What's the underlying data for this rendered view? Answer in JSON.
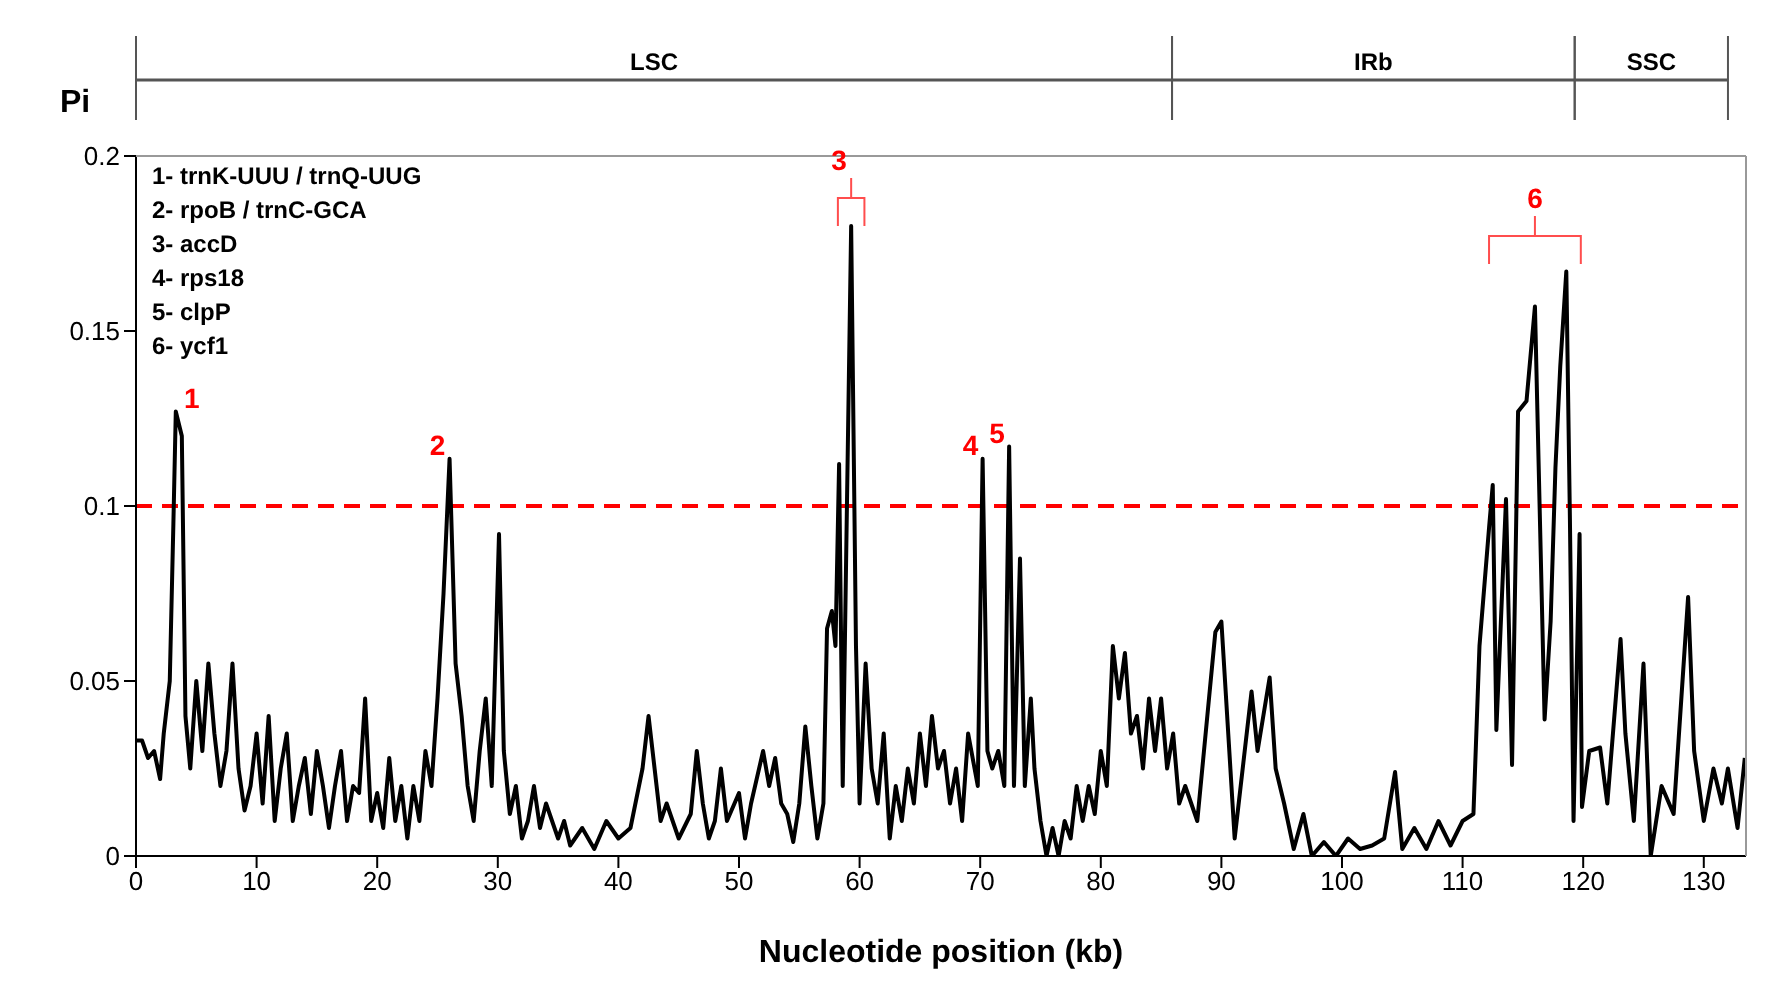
{
  "chart_data": {
    "type": "line",
    "xlabel": "Nucleotide position (kb)",
    "ylabel": "Pi",
    "xlim": [
      0,
      133.5
    ],
    "xticks": [
      0,
      10,
      20,
      30,
      40,
      50,
      60,
      70,
      80,
      90,
      100,
      110,
      120,
      130
    ],
    "ylim": [
      0,
      0.2
    ],
    "yticks": [
      0,
      0.05,
      0.1,
      0.15,
      0.2
    ],
    "grid": false,
    "ref_lines": [
      {
        "axis": "y",
        "value": 0.1,
        "color": "#ff0000",
        "line_style": "dashed"
      }
    ],
    "annotations": [
      "1- trnK-UUU / trnQ-UUG",
      "2- rpoB / trnC-GCA",
      "3- accD",
      "4- rps18",
      "5- clpP",
      "6- ycf1",
      "LSC",
      "IRb",
      "SSC",
      "6",
      {
        "text": "1",
        "x": 3.3,
        "y": 0.127
      },
      {
        "text": "2",
        "x": 26,
        "y": 0.1135
      },
      {
        "text": "3",
        "x": 59.3,
        "y": 0.18
      },
      {
        "text": "4",
        "x": 70.2,
        "y": 0.1135
      },
      {
        "text": "5",
        "x": 72.4,
        "y": 0.117
      }
    ],
    "series": [
      {
        "color": "#000000",
        "x": [
          0,
          0.5,
          1,
          1.5,
          2,
          2.3,
          2.8,
          3.1,
          3.3,
          3.8,
          4.1,
          4.5,
          5,
          5.5,
          6,
          6.5,
          7,
          7.5,
          8,
          8.5,
          9,
          9.5,
          10,
          10.5,
          11,
          11.5,
          12,
          12.5,
          13,
          13.5,
          14,
          14.5,
          15,
          15.5,
          16,
          16.5,
          17,
          17.5,
          18,
          18.5,
          19,
          19.5,
          20,
          20.5,
          21,
          21.5,
          22,
          22.5,
          23,
          23.5,
          24,
          24.5,
          25,
          25.5,
          26,
          26.5,
          27,
          27.5,
          28,
          28.5,
          29,
          29.5,
          30.1,
          30.5,
          31,
          31.5,
          32,
          32.5,
          33,
          33.5,
          34,
          35,
          35.5,
          36,
          37,
          38,
          39,
          40,
          41,
          42,
          42.5,
          43,
          43.5,
          44,
          45,
          46,
          46.5,
          47,
          47.5,
          48,
          48.5,
          49,
          50,
          50.5,
          51,
          52,
          52.5,
          53,
          53.5,
          54,
          54.5,
          55,
          55.5,
          56,
          56.5,
          57,
          57.3,
          57.7,
          58,
          58.3,
          58.6,
          59.3,
          59.7,
          60,
          60.5,
          61,
          61.5,
          62,
          62.5,
          63,
          63.5,
          64,
          64.5,
          65,
          65.5,
          66,
          66.5,
          67,
          67.5,
          68,
          68.5,
          69,
          69.8,
          70.2,
          70.6,
          71,
          71.5,
          72,
          72.4,
          72.8,
          73.3,
          73.7,
          74.2,
          74.5,
          75,
          75.5,
          76,
          76.5,
          77,
          77.5,
          78,
          78.5,
          79,
          79.5,
          80,
          80.5,
          81,
          81.5,
          82,
          82.5,
          83,
          83.5,
          84,
          84.5,
          85,
          85.5,
          86,
          86.5,
          87,
          88,
          89.5,
          90,
          91.1,
          92.5,
          93,
          94,
          94.5,
          95.2,
          96,
          96.8,
          97.5,
          98.5,
          99.5,
          100.5,
          101.5,
          102.5,
          103.5,
          104.4,
          105,
          106,
          107,
          108,
          109,
          110,
          110.9,
          111.4,
          112.2,
          112.5,
          112.8,
          113.6,
          114.1,
          114.6,
          115.3,
          116,
          116.8,
          117.3,
          117.7,
          118.1,
          118.6,
          118.9,
          119.2,
          119.7,
          119.9,
          120.5,
          121.4,
          122,
          123.1,
          123.5,
          124.2,
          125,
          125.6,
          126.5,
          127.5,
          128.7,
          129.2,
          130,
          130.8,
          131.5,
          132,
          132.8,
          133.4
        ],
        "values": [
          0.033,
          0.033,
          0.028,
          0.03,
          0.022,
          0.035,
          0.05,
          0.095,
          0.127,
          0.12,
          0.04,
          0.025,
          0.05,
          0.03,
          0.055,
          0.035,
          0.02,
          0.03,
          0.055,
          0.025,
          0.013,
          0.02,
          0.035,
          0.015,
          0.04,
          0.01,
          0.025,
          0.035,
          0.01,
          0.02,
          0.028,
          0.012,
          0.03,
          0.02,
          0.008,
          0.02,
          0.03,
          0.01,
          0.02,
          0.018,
          0.045,
          0.01,
          0.018,
          0.008,
          0.028,
          0.01,
          0.02,
          0.005,
          0.02,
          0.01,
          0.03,
          0.02,
          0.045,
          0.075,
          0.1135,
          0.055,
          0.04,
          0.02,
          0.01,
          0.03,
          0.045,
          0.02,
          0.092,
          0.03,
          0.012,
          0.02,
          0.005,
          0.01,
          0.02,
          0.008,
          0.015,
          0.005,
          0.01,
          0.003,
          0.008,
          0.002,
          0.01,
          0.005,
          0.008,
          0.025,
          0.04,
          0.025,
          0.01,
          0.015,
          0.005,
          0.012,
          0.03,
          0.015,
          0.005,
          0.01,
          0.025,
          0.01,
          0.018,
          0.005,
          0.015,
          0.03,
          0.02,
          0.028,
          0.015,
          0.012,
          0.004,
          0.015,
          0.037,
          0.02,
          0.005,
          0.015,
          0.065,
          0.07,
          0.06,
          0.112,
          0.02,
          0.18,
          0.06,
          0.015,
          0.055,
          0.025,
          0.015,
          0.035,
          0.005,
          0.02,
          0.01,
          0.025,
          0.015,
          0.035,
          0.02,
          0.04,
          0.025,
          0.03,
          0.015,
          0.025,
          0.01,
          0.035,
          0.02,
          0.1135,
          0.03,
          0.025,
          0.03,
          0.02,
          0.117,
          0.02,
          0.085,
          0.02,
          0.045,
          0.025,
          0.01,
          0,
          0.008,
          0,
          0.01,
          0.005,
          0.02,
          0.01,
          0.02,
          0.012,
          0.03,
          0.02,
          0.06,
          0.045,
          0.058,
          0.035,
          0.04,
          0.025,
          0.045,
          0.03,
          0.045,
          0.025,
          0.035,
          0.015,
          0.02,
          0.01,
          0.064,
          0.067,
          0.005,
          0.047,
          0.03,
          0.051,
          0.025,
          0.015,
          0.002,
          0.012,
          0,
          0.004,
          0,
          0.005,
          0.002,
          0.003,
          0.005,
          0.024,
          0.002,
          0.008,
          0.002,
          0.01,
          0.003,
          0.01,
          0.012,
          0.06,
          0.094,
          0.106,
          0.036,
          0.102,
          0.026,
          0.127,
          0.13,
          0.157,
          0.039,
          0.067,
          0.111,
          0.14,
          0.167,
          0.096,
          0.01,
          0.092,
          0.014,
          0.03,
          0.031,
          0.015,
          0.062,
          0.035,
          0.01,
          0.055,
          0,
          0.02,
          0.012,
          0.074,
          0.03,
          0.01,
          0.025,
          0.015,
          0.025,
          0.008,
          0.028
        ]
      }
    ]
  }
}
